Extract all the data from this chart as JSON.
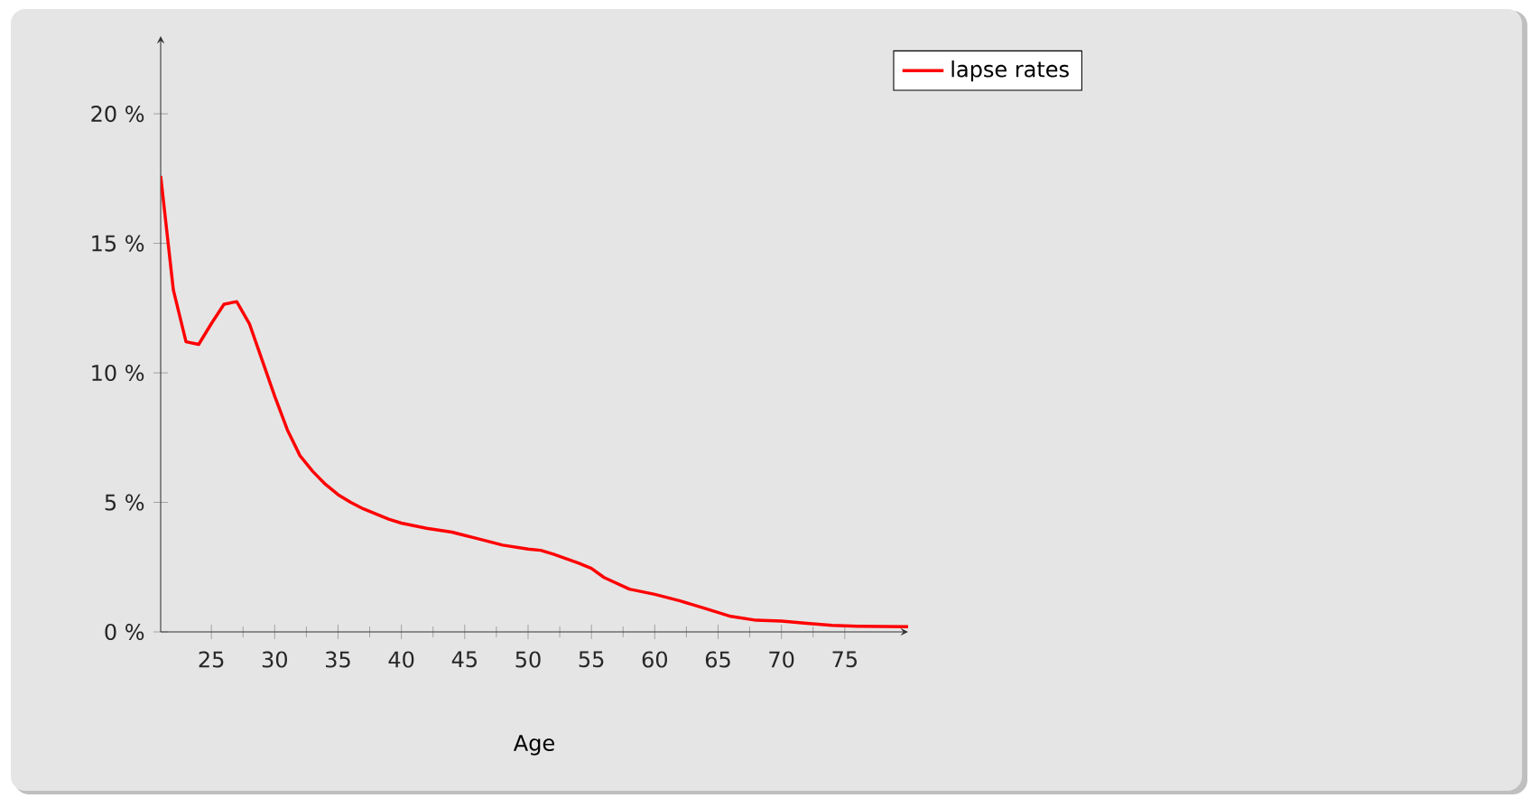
{
  "chart_data": {
    "type": "line",
    "xlabel": "Age",
    "x": [
      21,
      22,
      23,
      24,
      25,
      26,
      27,
      28,
      29,
      30,
      31,
      32,
      33,
      34,
      35,
      36,
      37,
      38,
      39,
      40,
      42,
      44,
      46,
      48,
      50,
      51,
      52,
      54,
      55,
      56,
      58,
      60,
      62,
      64,
      66,
      68,
      70,
      72,
      74,
      76,
      80
    ],
    "series": [
      {
        "name": "lapse rates",
        "color": "#ff0000",
        "values": [
          17.6,
          13.2,
          11.2,
          11.1,
          11.9,
          12.65,
          12.75,
          11.9,
          10.5,
          9.1,
          7.8,
          6.8,
          6.2,
          5.7,
          5.3,
          5.0,
          4.75,
          4.55,
          4.35,
          4.2,
          4.0,
          3.85,
          3.6,
          3.35,
          3.2,
          3.15,
          3.0,
          2.65,
          2.45,
          2.1,
          1.65,
          1.45,
          1.2,
          0.9,
          0.6,
          0.45,
          0.42,
          0.33,
          0.25,
          0.22,
          0.2
        ]
      }
    ],
    "xlim": [
      21,
      80
    ],
    "ylim": [
      0,
      23
    ],
    "xticks": [
      25,
      30,
      35,
      40,
      45,
      50,
      55,
      60,
      65,
      70,
      75
    ],
    "yticks": [
      {
        "value": 0,
        "label": "0 %"
      },
      {
        "value": 5,
        "label": "5 %"
      },
      {
        "value": 10,
        "label": "10 %"
      },
      {
        "value": 15,
        "label": "15 %"
      },
      {
        "value": 20,
        "label": "20 %"
      }
    ],
    "legend": "top right",
    "marker": "none",
    "line_style": "solid",
    "grid": false
  }
}
